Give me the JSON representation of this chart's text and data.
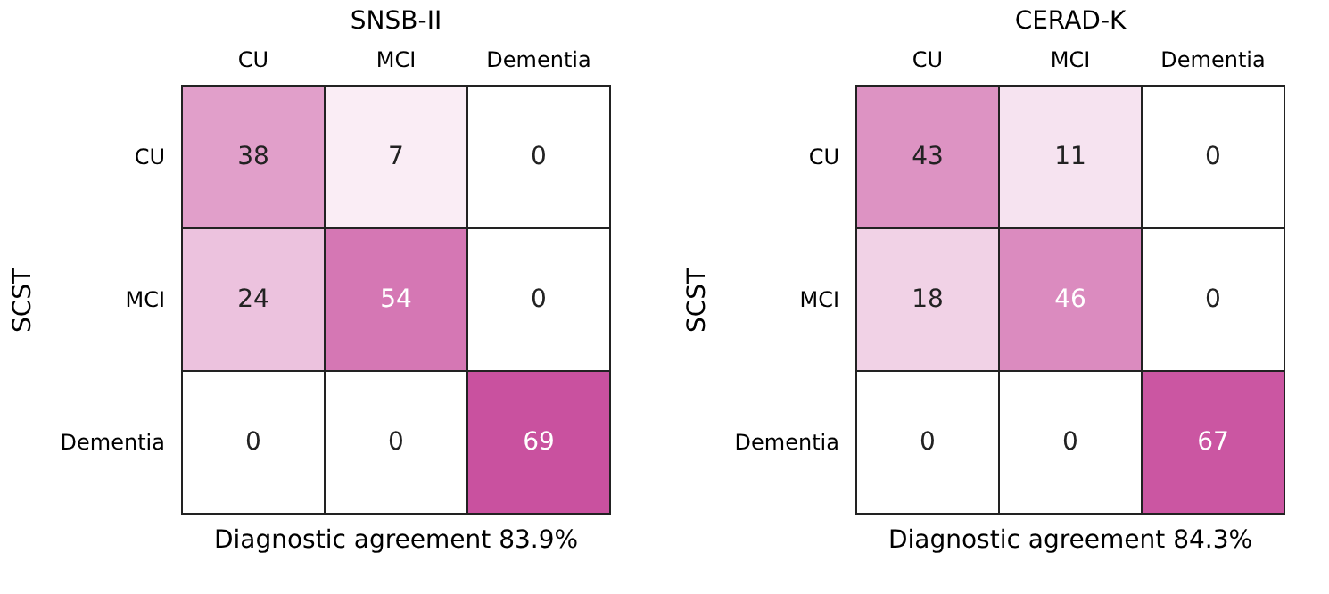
{
  "chart_data": [
    {
      "type": "heatmap",
      "title": "SNSB-II",
      "xlabel": "Diagnostic agreement 83.9%",
      "ylabel": "SCST",
      "categories": [
        "CU",
        "MCI",
        "Dementia"
      ],
      "y_categories": [
        "CU",
        "MCI",
        "Dementia"
      ],
      "cells": [
        [
          38,
          7,
          0
        ],
        [
          24,
          54,
          0
        ],
        [
          0,
          0,
          69
        ]
      ],
      "data_labels": true,
      "grid": false
    },
    {
      "type": "heatmap",
      "title": "CERAD-K",
      "xlabel": "Diagnostic agreement 84.3%",
      "ylabel": "SCST",
      "categories": [
        "CU",
        "MCI",
        "Dementia"
      ],
      "y_categories": [
        "CU",
        "MCI",
        "Dementia"
      ],
      "cells": [
        [
          43,
          11,
          0
        ],
        [
          18,
          46,
          0
        ],
        [
          0,
          0,
          67
        ]
      ],
      "data_labels": true,
      "grid": false
    }
  ]
}
